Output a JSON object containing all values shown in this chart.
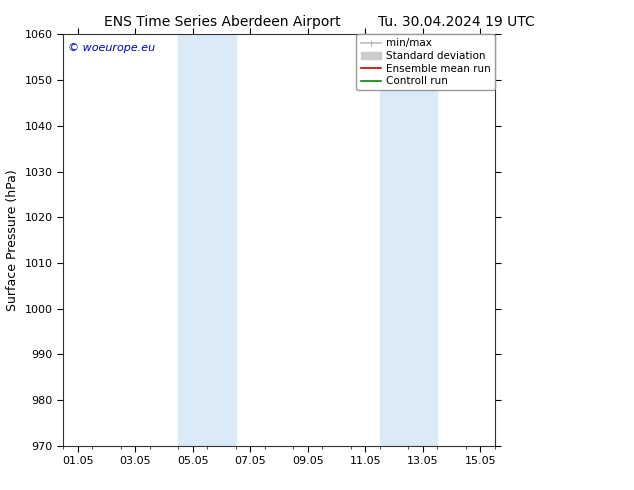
{
  "title": "ENS Time Series Aberdeen Airport",
  "title2": "Tu. 30.04.2024 19 UTC",
  "ylabel": "Surface Pressure (hPa)",
  "ylim": [
    970,
    1060
  ],
  "yticks": [
    970,
    980,
    990,
    1000,
    1010,
    1020,
    1030,
    1040,
    1050,
    1060
  ],
  "xtick_labels": [
    "01.05",
    "03.05",
    "05.05",
    "07.05",
    "09.05",
    "11.05",
    "13.05",
    "15.05"
  ],
  "xtick_positions": [
    0,
    2,
    4,
    6,
    8,
    10,
    12,
    14
  ],
  "xlim": [
    -0.5,
    14.5
  ],
  "shade_bands": [
    {
      "x_start": 3.5,
      "x_end": 5.5,
      "color": "#daeaf7"
    },
    {
      "x_start": 10.5,
      "x_end": 12.5,
      "color": "#daeaf7"
    }
  ],
  "copyright_text": "© woeurope.eu",
  "copyright_color": "#0000bb",
  "legend_items": [
    {
      "label": "min/max",
      "color": "#bbbbbb",
      "lw": 1.2
    },
    {
      "label": "Standard deviation",
      "color": "#cccccc",
      "lw": 5
    },
    {
      "label": "Ensemble mean run",
      "color": "#cc0000",
      "lw": 1.2
    },
    {
      "label": "Controll run",
      "color": "#008800",
      "lw": 1.2
    }
  ],
  "bg_color": "#ffffff",
  "plot_bg_color": "#ffffff",
  "title_fontsize": 10,
  "tick_fontsize": 8,
  "ylabel_fontsize": 9,
  "legend_fontsize": 7.5
}
